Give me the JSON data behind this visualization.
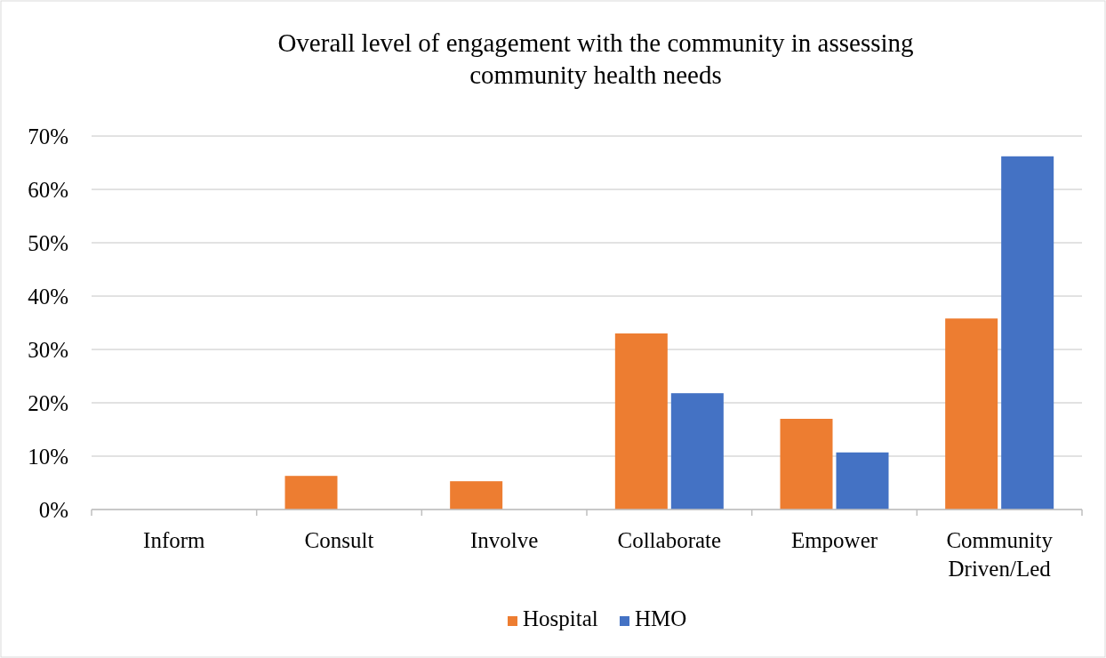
{
  "chart_data": {
    "type": "bar",
    "title": "Overall level of engagement with the community in assessing community health needs",
    "categories": [
      "Inform",
      "Consult",
      "Involve",
      "Collaborate",
      "Empower",
      "Community Driven/Led"
    ],
    "series": [
      {
        "name": "Hospital",
        "color": "#ed7d31",
        "values": [
          0,
          6.3,
          5.3,
          33,
          17,
          35.8
        ]
      },
      {
        "name": "HMO",
        "color": "#4472c4",
        "values": [
          0,
          0,
          0,
          21.8,
          10.7,
          66.2
        ]
      }
    ],
    "ylim": [
      0,
      70
    ],
    "yticks": [
      {
        "value": 0,
        "label": "0%"
      },
      {
        "value": 10,
        "label": "10%"
      },
      {
        "value": 20,
        "label": "20%"
      },
      {
        "value": 30,
        "label": "30%"
      },
      {
        "value": 40,
        "label": "40%"
      },
      {
        "value": 50,
        "label": "50%"
      },
      {
        "value": 60,
        "label": "60%"
      },
      {
        "value": 70,
        "label": "70%"
      }
    ],
    "grid": "y",
    "legend": "bottom"
  }
}
